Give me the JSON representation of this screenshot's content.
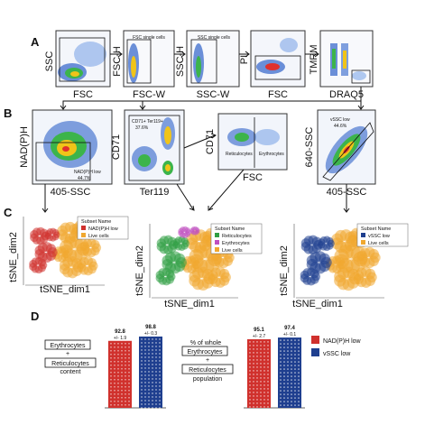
{
  "panel_labels": {
    "a": "A",
    "b": "B",
    "c": "C",
    "d": "D"
  },
  "row_a": {
    "plots": [
      {
        "ylabel": "SSC",
        "xlabel": "FSC",
        "gate": ""
      },
      {
        "ylabel": "FSC-H",
        "xlabel": "FSC-W",
        "gate": "FSC single cells"
      },
      {
        "ylabel": "SSC-H",
        "xlabel": "SSC-W",
        "gate": "SSC single cells"
      },
      {
        "ylabel": "PI",
        "xlabel": "FSC",
        "gate": ""
      },
      {
        "ylabel": "TMRM",
        "xlabel": "DRAQ5",
        "gate": ""
      }
    ]
  },
  "row_b": {
    "plots": [
      {
        "ylabel": "NAD(P)H",
        "xlabel": "405-SSC",
        "gate": "NAD(P)H low",
        "pct": "44.7%"
      },
      {
        "ylabel": "CD71",
        "xlabel": "Ter119",
        "gate": "CD71+ Ter119+",
        "pct": "37.6%"
      },
      {
        "ylabel": "CD71",
        "xlabel": "FSC",
        "gate1": "Reticulocytes",
        "gate2": "Erythrocytes"
      },
      {
        "ylabel": "640-SSC",
        "xlabel": "405-SSC",
        "gate": "vSSC low",
        "pct": "44.6%"
      }
    ]
  },
  "row_c": {
    "plots": [
      {
        "ylabel": "tSNE_dim2",
        "xlabel": "tSNE_dim1",
        "legend_title": "Subset Name",
        "legend": [
          {
            "label": "NAD(P)H low",
            "color": "#d0312d"
          },
          {
            "label": "Live cells",
            "color": "#f0a830"
          }
        ]
      },
      {
        "ylabel": "tSNE_dim2",
        "xlabel": "tSNE_dim1",
        "legend_title": "Subset Name",
        "legend": [
          {
            "label": "Reticulocytes",
            "color": "#2f9e44"
          },
          {
            "label": "Erythrocytes",
            "color": "#c04fc0"
          },
          {
            "label": "Live cells",
            "color": "#f0a830"
          }
        ]
      },
      {
        "ylabel": "tSNE_dim2",
        "xlabel": "tSNE_dim1",
        "legend_title": "Subset Name",
        "legend": [
          {
            "label": "vSSC low",
            "color": "#1f3f8f"
          },
          {
            "label": "Live cells",
            "color": "#f0a830"
          }
        ]
      }
    ]
  },
  "row_d": {
    "left": {
      "label_lines": [
        "Erythrocytes",
        "+",
        "Reticulocytes",
        "content"
      ],
      "bars": [
        {
          "value": "92.8",
          "sd": "+/- 1.9",
          "color": "#d0312d",
          "height": 92.8
        },
        {
          "value": "98.8",
          "sd": "+/- 0.3",
          "color": "#1f3f8f",
          "height": 98.8
        }
      ]
    },
    "right": {
      "label_lines": [
        "% of whole",
        "Erythrocytes",
        "+",
        "Reticulocytes",
        "population"
      ],
      "bars": [
        {
          "value": "95.1",
          "sd": "+/- 2.7",
          "color": "#d0312d",
          "height": 95.1
        },
        {
          "value": "97.4",
          "sd": "+/- 0.1",
          "color": "#1f3f8f",
          "height": 97.4
        }
      ]
    },
    "legend": [
      {
        "label": "NAD(P)H low",
        "color": "#d0312d"
      },
      {
        "label": "vSSC low",
        "color": "#1f3f8f"
      }
    ]
  }
}
